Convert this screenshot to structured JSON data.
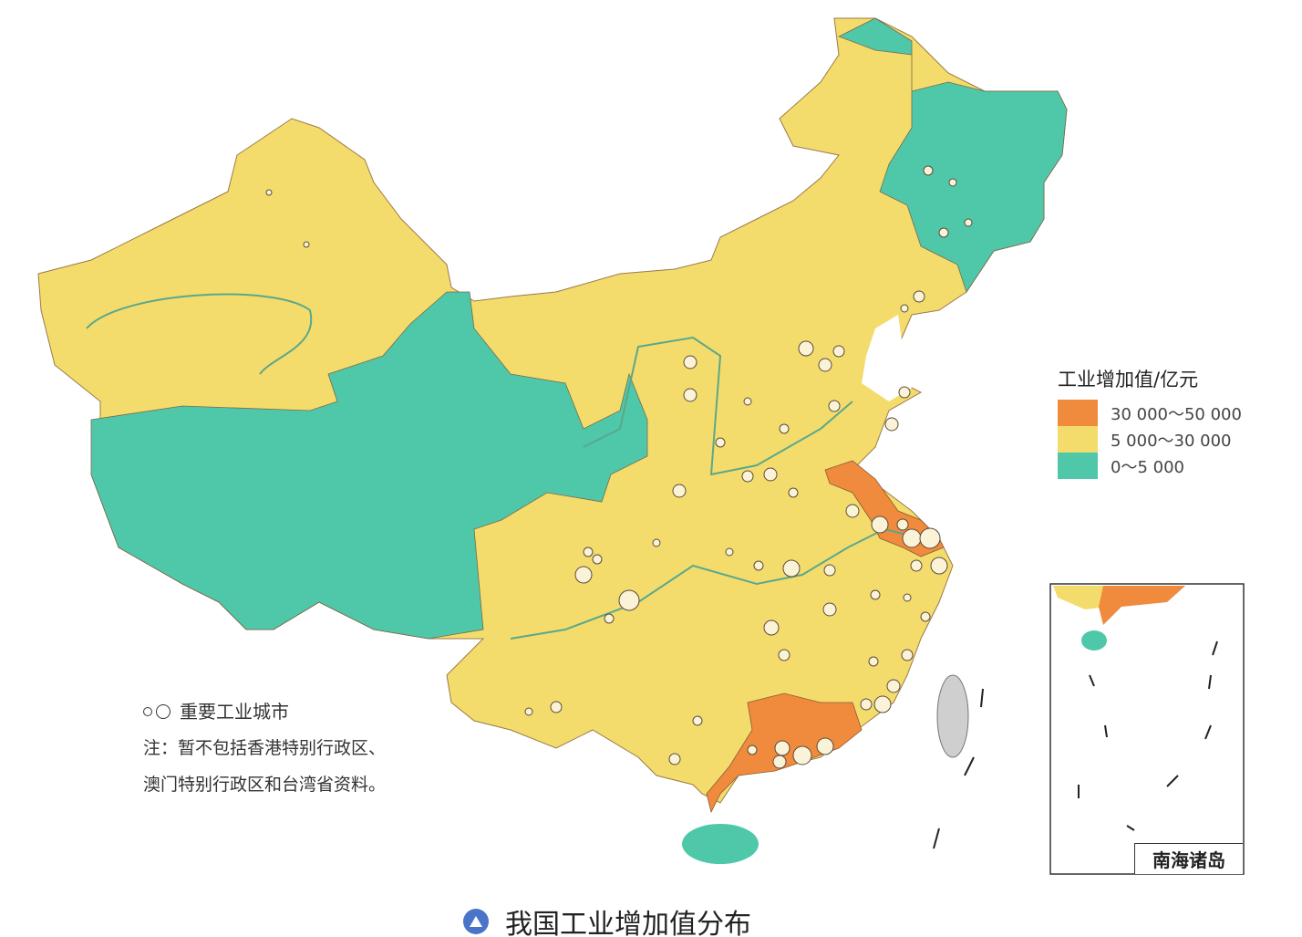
{
  "legend": {
    "title": "工业增加值/亿元",
    "items": [
      {
        "label": "30 000～50 000",
        "color": "#f08a3c"
      },
      {
        "label": "5 000～30 000",
        "color": "#f4dc6c"
      },
      {
        "label": "0～5 000",
        "color": "#4fc7a9"
      }
    ]
  },
  "city_key": {
    "label": "重要工业城市",
    "icon": "circle-outline-icon"
  },
  "note": {
    "line1": "注：暂不包括香港特别行政区、",
    "line2": "澳门特别行政区和台湾省资料。"
  },
  "inset": {
    "label": "南海诸岛"
  },
  "caption": {
    "title": "我国工业增加值分布",
    "icon": "triangle-badge-icon"
  },
  "colors": {
    "sea": "#ffffff",
    "river": "#5aa88a",
    "taiwan": "#cfcfcf",
    "boundary": "#8a5a3a"
  }
}
